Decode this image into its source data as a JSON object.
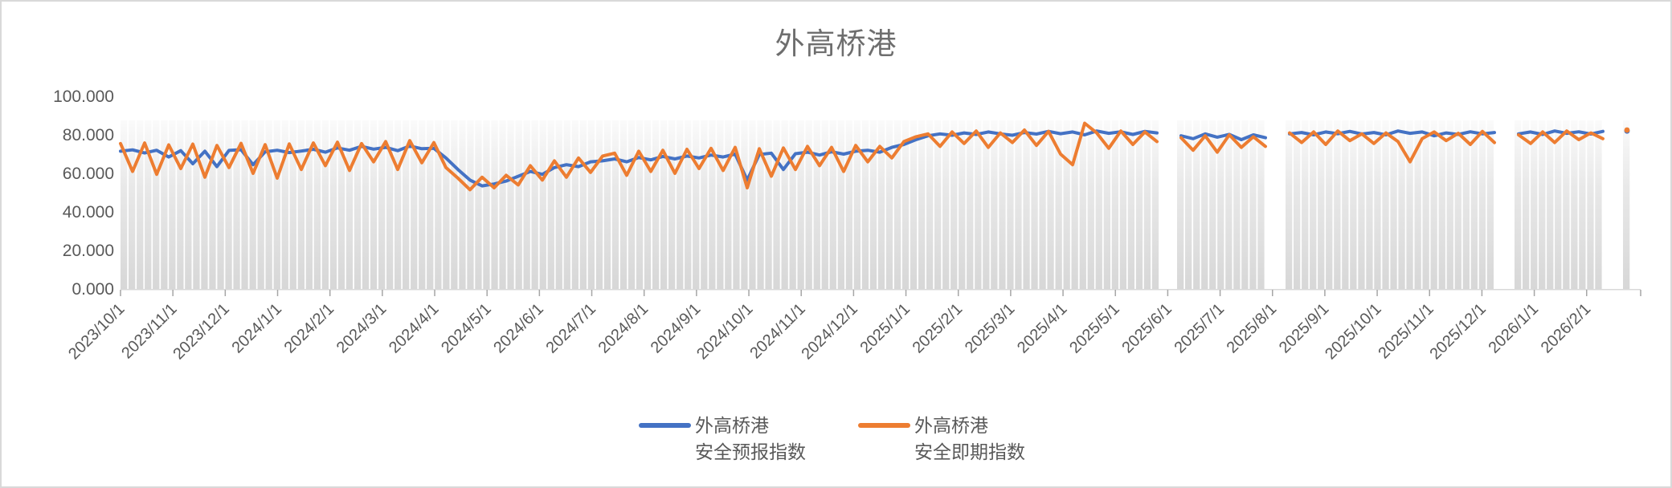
{
  "title": "外高桥港",
  "legend": {
    "forecast": {
      "line1": "外高桥港",
      "line2": "安全预报指数"
    },
    "spot": {
      "line1": "外高桥港",
      "line2": "安全即期指数"
    }
  },
  "colors": {
    "forecast": "#4472C4",
    "spot": "#ED7D31",
    "bar_fill": "#D9D9D9",
    "axis_line": "#D9D9D9",
    "tick": "#A6A6A6",
    "axis_text": "#595959",
    "title_text": "#6E6E6E",
    "border": "#D9D9D9"
  },
  "chart_data": {
    "type": "line",
    "title": "外高桥港",
    "x_start": "2023/10/1",
    "x_interval_days": 7,
    "x_tick_labels": [
      "2023/10/1",
      "2023/11/1",
      "2023/12/1",
      "2024/1/1",
      "2024/2/1",
      "2024/3/1",
      "2024/4/1",
      "2024/5/1",
      "2024/6/1",
      "2024/7/1",
      "2024/8/1",
      "2024/9/1",
      "2024/10/1",
      "2024/11/1",
      "2024/12/1",
      "2025/1/1",
      "2025/2/1",
      "2025/3/1",
      "2025/4/1",
      "2025/5/1",
      "2025/6/1",
      "2025/7/1",
      "2025/8/1",
      "2025/9/1",
      "2025/10/1",
      "2025/11/1",
      "2025/12/1",
      "2026/1/1",
      "2026/2/1"
    ],
    "y_tick_labels": [
      "0.000",
      "20.000",
      "40.000",
      "60.000",
      "80.000",
      "100.000"
    ],
    "ylim": [
      0,
      100
    ],
    "grid": "none",
    "legend_position": "bottom-center",
    "background_bar_top": 87.5,
    "gaps": [
      "2025/6/2-2025/6/8",
      "2025/8/2-2025/8/9",
      "2025/12/13-2025/12/22",
      "2026/2/10-2026/2/21"
    ],
    "series": [
      {
        "name": "外高桥港安全预报指数",
        "color": "#4472C4",
        "values": [
          71.5,
          72.2,
          70.6,
          72.0,
          68.5,
          71.8,
          65.0,
          71.5,
          63.5,
          71.9,
          72.3,
          64.5,
          71.2,
          72.0,
          70.8,
          71.6,
          72.5,
          71.0,
          73.2,
          72.0,
          74.0,
          72.6,
          73.5,
          71.8,
          74.2,
          72.8,
          73.0,
          68.0,
          62.0,
          56.5,
          53.5,
          54.5,
          56.0,
          58.5,
          61.0,
          59.5,
          63.0,
          64.5,
          63.5,
          66.0,
          66.5,
          67.5,
          66.0,
          68.2,
          67.0,
          68.8,
          67.5,
          69.0,
          68.0,
          69.5,
          68.5,
          70.0,
          56.5,
          69.8,
          70.5,
          62.0,
          70.2,
          71.0,
          69.5,
          71.2,
          70.0,
          71.5,
          72.0,
          71.0,
          73.5,
          75.0,
          77.5,
          79.5,
          80.5,
          79.8,
          81.0,
          80.2,
          81.5,
          80.5,
          79.8,
          81.2,
          80.4,
          81.8,
          80.6,
          81.5,
          80.0,
          82.0,
          80.8,
          81.6,
          80.2,
          81.8,
          81.0,
          null,
          79.5,
          78.0,
          80.5,
          78.8,
          80.2,
          77.5,
          80.0,
          78.5,
          null,
          80.5,
          81.2,
          80.0,
          81.5,
          80.6,
          81.8,
          80.4,
          81.2,
          80.0,
          82.0,
          80.8,
          81.5,
          79.5,
          81.0,
          80.2,
          81.6,
          80.5,
          81.2,
          null,
          80.5,
          81.5,
          80.2,
          82.0,
          80.8,
          81.6,
          80.4,
          81.8,
          null,
          82.0
        ]
      },
      {
        "name": "外高桥港安全即期指数",
        "color": "#ED7D31",
        "values": [
          75.5,
          61.0,
          75.8,
          59.5,
          74.8,
          62.5,
          75.2,
          58.0,
          74.5,
          63.0,
          75.6,
          60.0,
          74.9,
          57.5,
          75.3,
          62.0,
          75.8,
          64.0,
          76.2,
          61.5,
          75.5,
          66.0,
          76.5,
          62.0,
          77.0,
          65.5,
          76.0,
          63.0,
          57.5,
          51.5,
          58.0,
          52.5,
          59.0,
          54.0,
          64.0,
          56.5,
          66.5,
          58.0,
          68.0,
          60.5,
          69.0,
          70.5,
          59.0,
          71.5,
          61.0,
          72.0,
          60.0,
          72.5,
          62.5,
          73.0,
          61.5,
          73.5,
          52.5,
          72.8,
          58.5,
          73.2,
          62.0,
          74.0,
          64.0,
          73.5,
          61.0,
          74.5,
          66.0,
          74.0,
          68.0,
          76.5,
          79.0,
          80.5,
          74.0,
          81.5,
          75.5,
          82.0,
          73.5,
          81.0,
          76.0,
          82.5,
          74.5,
          81.8,
          70.0,
          64.5,
          86.0,
          81.0,
          73.0,
          82.0,
          75.0,
          81.5,
          76.5,
          null,
          78.5,
          72.0,
          79.5,
          71.0,
          80.0,
          73.5,
          79.0,
          74.0,
          null,
          81.0,
          76.0,
          81.5,
          75.0,
          82.0,
          77.0,
          80.5,
          75.5,
          81.0,
          76.5,
          66.0,
          78.0,
          81.5,
          77.0,
          80.8,
          75.0,
          81.8,
          76.0,
          null,
          80.0,
          75.5,
          81.5,
          76.0,
          82.0,
          77.5,
          81.0,
          78.0,
          null,
          82.5
        ]
      }
    ]
  }
}
